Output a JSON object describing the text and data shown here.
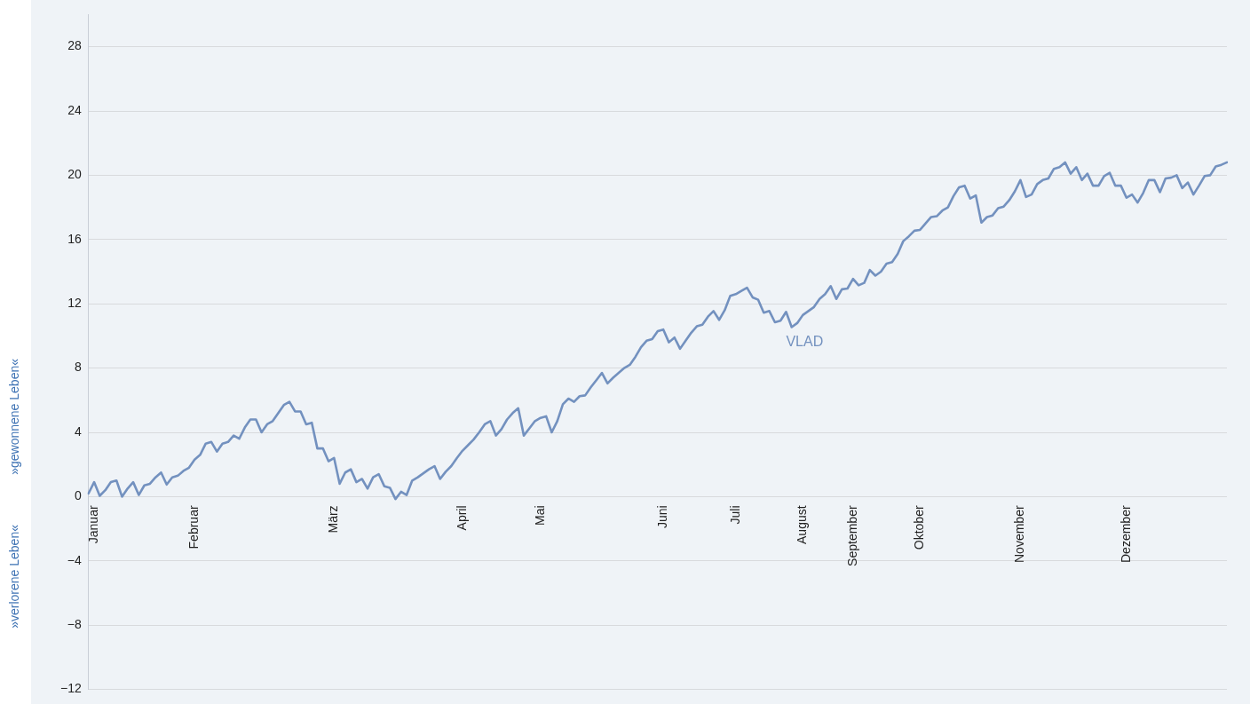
{
  "chart_data": {
    "type": "line",
    "ylabel": "»gewonnene Leben«",
    "annotations": [
      "»verlorene Leben«"
    ],
    "categories": [
      null,
      "Januar",
      null,
      null,
      null,
      null,
      null,
      null,
      null,
      null,
      null,
      null,
      null,
      null,
      null,
      null,
      null,
      null,
      null,
      "Februar",
      null,
      null,
      null,
      null,
      null,
      null,
      null,
      null,
      null,
      null,
      null,
      null,
      null,
      null,
      null,
      null,
      null,
      null,
      null,
      null,
      null,
      null,
      null,
      null,
      "März",
      null,
      null,
      null,
      null,
      null,
      null,
      null,
      null,
      null,
      null,
      null,
      null,
      null,
      null,
      null,
      null,
      null,
      null,
      null,
      null,
      null,
      null,
      "April",
      null,
      null,
      null,
      null,
      null,
      null,
      null,
      null,
      null,
      null,
      null,
      null,
      null,
      "Mai",
      null,
      null,
      null,
      null,
      null,
      null,
      null,
      null,
      null,
      null,
      null,
      null,
      null,
      null,
      null,
      null,
      null,
      null,
      null,
      null,
      null,
      "Juni",
      null,
      null,
      null,
      null,
      null,
      null,
      null,
      null,
      null,
      null,
      null,
      null,
      "Juli",
      null,
      null,
      null,
      null,
      null,
      null,
      null,
      null,
      null,
      null,
      null,
      "August",
      null,
      null,
      null,
      null,
      null,
      null,
      null,
      null,
      "September",
      null,
      null,
      null,
      null,
      null,
      null,
      null,
      null,
      null,
      null,
      null,
      "Oktober",
      null,
      null,
      null,
      null,
      null,
      null,
      null,
      null,
      null,
      null,
      null,
      null,
      null,
      null,
      null,
      null,
      null,
      "November",
      null,
      null,
      null,
      null,
      null,
      null,
      null,
      null,
      null,
      null,
      null,
      null,
      null,
      null,
      null,
      null,
      null,
      null,
      "Dezember",
      null,
      null,
      null,
      null,
      null,
      null,
      null,
      null,
      null,
      null,
      null,
      null,
      null,
      null,
      null,
      null,
      null,
      null
    ],
    "ylim": [
      -12,
      30
    ],
    "yticks": [
      -12,
      -8,
      -4,
      0,
      4,
      8,
      12,
      16,
      20,
      24,
      28
    ],
    "grid": "y",
    "marker": "none",
    "line_style": "solid",
    "series": [
      {
        "name": "VLAD",
        "color": "#7391bf",
        "values": [
          0.2,
          0.9,
          0.05,
          0.4,
          0.9,
          1.0,
          0,
          0.5,
          0.9,
          0.1,
          0.7,
          0.8,
          1.2,
          1.5,
          0.75,
          1.2,
          1.3,
          1.6,
          1.8,
          2.3,
          2.6,
          3.3,
          3.4,
          2.8,
          3.3,
          3.4,
          3.8,
          3.6,
          4.3,
          4.8,
          4.8,
          4.0,
          4.5,
          4.7,
          5.2,
          5.7,
          5.9,
          5.3,
          5.3,
          4.5,
          4.6,
          3.0,
          3.0,
          2.2,
          2.4,
          0.8,
          1.5,
          1.7,
          0.9,
          1.1,
          0.5,
          1.2,
          1.4,
          0.65,
          0.55,
          -0.15,
          0.3,
          0.1,
          1.0,
          1.2,
          1.45,
          1.7,
          1.9,
          1.1,
          1.55,
          1.9,
          2.4,
          2.85,
          3.2,
          3.55,
          4.0,
          4.5,
          4.7,
          3.8,
          4.2,
          4.8,
          5.2,
          5.5,
          3.8,
          4.25,
          4.7,
          4.9,
          5.0,
          4.0,
          4.7,
          5.75,
          6.1,
          5.9,
          6.25,
          6.3,
          6.8,
          7.25,
          7.7,
          7.05,
          7.4,
          7.7,
          8.0,
          8.2,
          8.7,
          9.3,
          9.7,
          9.8,
          10.3,
          10.4,
          9.6,
          9.9,
          9.2,
          9.7,
          10.2,
          10.6,
          10.7,
          11.2,
          11.55,
          11.0,
          11.6,
          12.5,
          12.6,
          12.8,
          13.0,
          12.4,
          12.25,
          11.45,
          11.55,
          10.85,
          10.95,
          11.5,
          10.55,
          10.8,
          11.3,
          11.55,
          11.8,
          12.3,
          12.6,
          13.1,
          12.3,
          12.9,
          12.95,
          13.55,
          13.15,
          13.3,
          14.1,
          13.75,
          14.0,
          14.5,
          14.6,
          15.1,
          15.9,
          16.2,
          16.55,
          16.6,
          17.0,
          17.4,
          17.45,
          17.8,
          18.0,
          18.7,
          19.25,
          19.35,
          18.55,
          18.75,
          17.05,
          17.4,
          17.5,
          17.95,
          18.05,
          18.45,
          19.0,
          19.7,
          18.65,
          18.8,
          19.45,
          19.7,
          19.8,
          20.4,
          20.5,
          20.8,
          20.1,
          20.5,
          19.7,
          20.1,
          19.35,
          19.35,
          19.95,
          20.15,
          19.35,
          19.35,
          18.6,
          18.8,
          18.3,
          18.9,
          19.7,
          19.7,
          18.95,
          19.8,
          19.85,
          20.0,
          19.2,
          19.55,
          18.8,
          19.35,
          19.95,
          20.0,
          20.55,
          20.65,
          20.8
        ]
      }
    ]
  }
}
